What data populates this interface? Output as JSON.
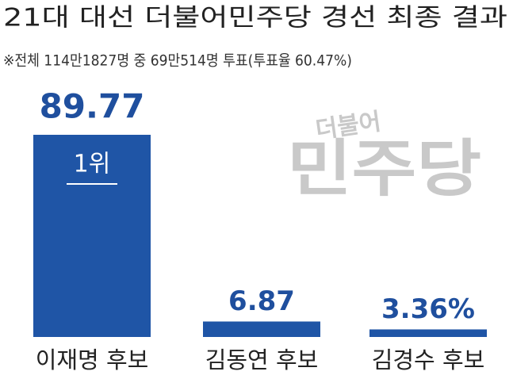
{
  "chart_data": {
    "type": "bar",
    "title": "21대 대선 더불어민주당 경선 최종 결과",
    "subtitle": "※전체 114만1827명 중 69만514명 투표(투표율 60.47%)",
    "categories": [
      "이재명 후보",
      "김동연 후보",
      "김경수 후보"
    ],
    "values": [
      89.77,
      6.87,
      3.36
    ],
    "value_labels": [
      "89.77",
      "6.87",
      "3.36%"
    ],
    "color": "#1f55a6",
    "annotation": "1위",
    "watermark": [
      "더불어",
      "민주당"
    ]
  }
}
